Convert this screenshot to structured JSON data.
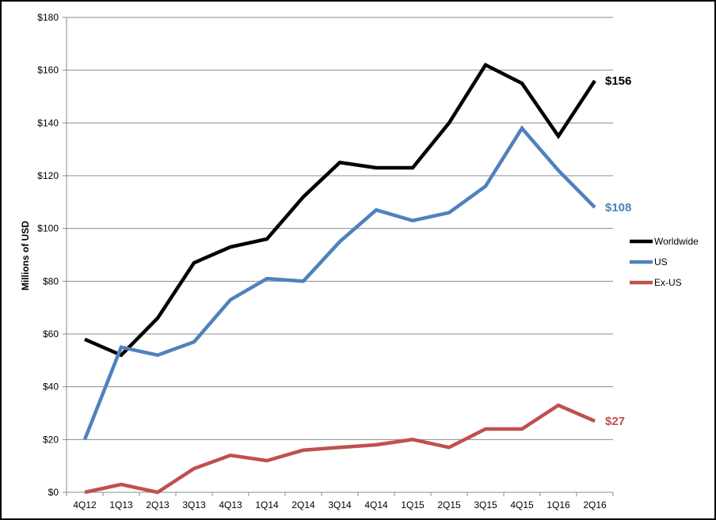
{
  "chart_data": {
    "type": "line",
    "title": "",
    "xlabel": "",
    "ylabel": "Millions of USD",
    "categories": [
      "4Q12",
      "1Q13",
      "2Q13",
      "3Q13",
      "4Q13",
      "1Q14",
      "2Q14",
      "3Q14",
      "4Q14",
      "1Q15",
      "2Q15",
      "3Q15",
      "4Q15",
      "1Q16",
      "2Q16"
    ],
    "ylim": [
      0,
      180
    ],
    "yticks": [
      0,
      20,
      40,
      60,
      80,
      100,
      120,
      140,
      160,
      180
    ],
    "ytick_labels": [
      "$0",
      "$20",
      "$40",
      "$60",
      "$80",
      "$100",
      "$120",
      "$140",
      "$160",
      "$180"
    ],
    "grid": true,
    "legend_position": "right",
    "series": [
      {
        "name": "Worldwide",
        "color": "#000000",
        "end_label": "$156",
        "values": [
          58,
          52,
          66,
          87,
          93,
          96,
          112,
          125,
          123,
          123,
          140,
          162,
          155,
          135,
          156
        ]
      },
      {
        "name": "US",
        "color": "#4f81bd",
        "end_label": "$108",
        "values": [
          20,
          55,
          52,
          57,
          73,
          81,
          80,
          95,
          107,
          103,
          106,
          116,
          138,
          122,
          108
        ]
      },
      {
        "name": "Ex-US",
        "color": "#c0504d",
        "end_label": "$27",
        "values": [
          0,
          3,
          0,
          9,
          14,
          12,
          16,
          17,
          18,
          20,
          17,
          24,
          24,
          33,
          27
        ]
      }
    ]
  }
}
